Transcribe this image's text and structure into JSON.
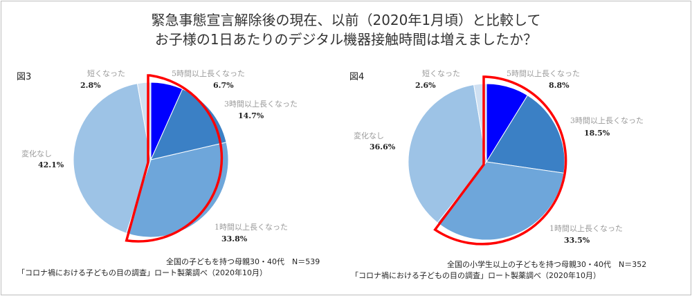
{
  "title": {
    "line1": "緊急事態宣言解除後の現在、以前（2020年1月頃）と比較して",
    "line2": "お子様の1日あたりのデジタル機器接触時間は増えましたか？"
  },
  "chart_data": [
    {
      "type": "pie",
      "figure_label": "図3",
      "categories": [
        "5時間以上長くなった",
        "3時間以上長くなった",
        "1時間以上長くなった",
        "変化なし",
        "短くなった"
      ],
      "values": [
        6.7,
        14.7,
        33.8,
        42.1,
        2.8
      ],
      "value_labels": [
        "6.7%",
        "14.7%",
        "33.8%",
        "42.1%",
        "2.8%"
      ],
      "colors": [
        "#0000ff",
        "#3b80c5",
        "#6ea6da",
        "#9dc3e6",
        "#cfe0f2"
      ],
      "highlight_color": "#ff0000",
      "highlighted_categories": [
        "5時間以上長くなった",
        "3時間以上長くなった",
        "1時間以上長くなった"
      ],
      "note1": "全国の子どもを持つ母親30・40代　N＝539",
      "note2": "「コロナ禍における子どもの目の調査」ロート製薬調べ（2020年10月）"
    },
    {
      "type": "pie",
      "figure_label": "図4",
      "categories": [
        "5時間以上長くなった",
        "3時間以上長くなった",
        "1時間以上長くなった",
        "変化なし",
        "短くなった"
      ],
      "values": [
        8.8,
        18.5,
        33.5,
        36.6,
        2.6
      ],
      "value_labels": [
        "8.8%",
        "18.5%",
        "33.5%",
        "36.6%",
        "2.6%"
      ],
      "colors": [
        "#0000ff",
        "#3b80c5",
        "#6ea6da",
        "#9dc3e6",
        "#cfe0f2"
      ],
      "highlight_color": "#ff0000",
      "highlighted_categories": [
        "5時間以上長くなった",
        "3時間以上長くなった",
        "1時間以上長くなった"
      ],
      "note1": "全国の小学生以上の子どもを持つ母親30・40代　N＝352",
      "note2": "「コロナ禍における子どもの目の調査」ロート製薬調べ（2020年10月）"
    }
  ]
}
